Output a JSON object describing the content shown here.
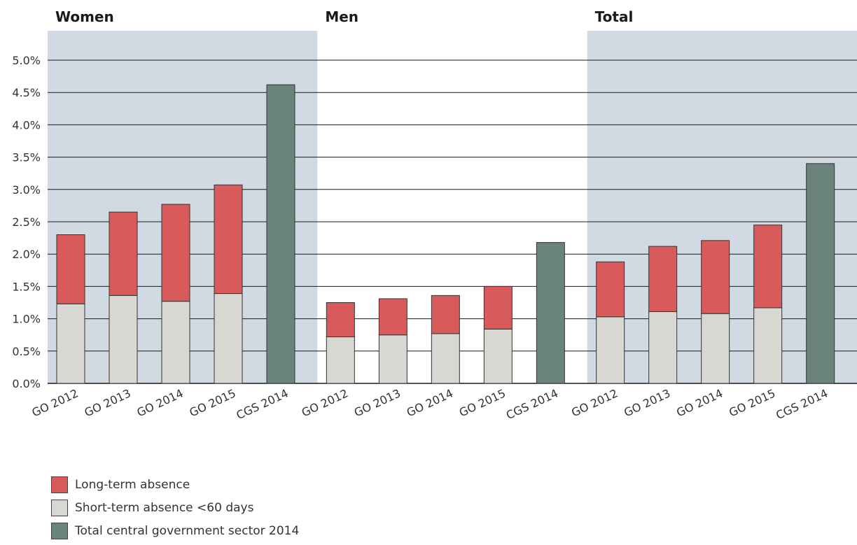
{
  "chart_data": {
    "type": "bar",
    "stacked": true,
    "y_ticks": [
      "0.0%",
      "0.5%",
      "1.0%",
      "1.5%",
      "2.0%",
      "2.5%",
      "3.0%",
      "3.5%",
      "4.0%",
      "4.5%",
      "5.0%"
    ],
    "ylim": [
      0,
      5.0
    ],
    "grid": true,
    "legend_position": "bottom-left",
    "groups": [
      {
        "title": "Women",
        "shaded": true,
        "categories": [
          "GO 2012",
          "GO 2013",
          "GO 2014",
          "GO 2015",
          "CGS 2014"
        ],
        "short_term": [
          1.23,
          1.36,
          1.27,
          1.39,
          null
        ],
        "long_term": [
          1.07,
          1.29,
          1.5,
          1.68,
          null
        ],
        "total_cgs": [
          null,
          null,
          null,
          null,
          4.62
        ]
      },
      {
        "title": "Men",
        "shaded": false,
        "categories": [
          "GO 2012",
          "GO 2013",
          "GO 2014",
          "GO 2015",
          "CGS 2014"
        ],
        "short_term": [
          0.72,
          0.75,
          0.77,
          0.84,
          null
        ],
        "long_term": [
          0.53,
          0.56,
          0.59,
          0.66,
          null
        ],
        "total_cgs": [
          null,
          null,
          null,
          null,
          2.18
        ]
      },
      {
        "title": "Total",
        "shaded": true,
        "categories": [
          "GO 2012",
          "GO 2013",
          "GO 2014",
          "GO 2015",
          "CGS 2014"
        ],
        "short_term": [
          1.03,
          1.11,
          1.08,
          1.17,
          null
        ],
        "long_term": [
          0.85,
          1.01,
          1.13,
          1.28,
          null
        ],
        "total_cgs": [
          null,
          null,
          null,
          null,
          3.4
        ]
      }
    ],
    "legend": [
      {
        "label": "Long-term absence",
        "color": "#d85a5a"
      },
      {
        "label": "Short-term absence <60 days",
        "color": "#d8d7d2"
      },
      {
        "label": "Total central government sector 2014",
        "color": "#6b837d"
      }
    ],
    "colors": {
      "long_term": "#d85a5a",
      "short_term": "#d8d7d2",
      "total_cgs": "#6b837d",
      "panel_shade": "#d1d9e3"
    }
  }
}
